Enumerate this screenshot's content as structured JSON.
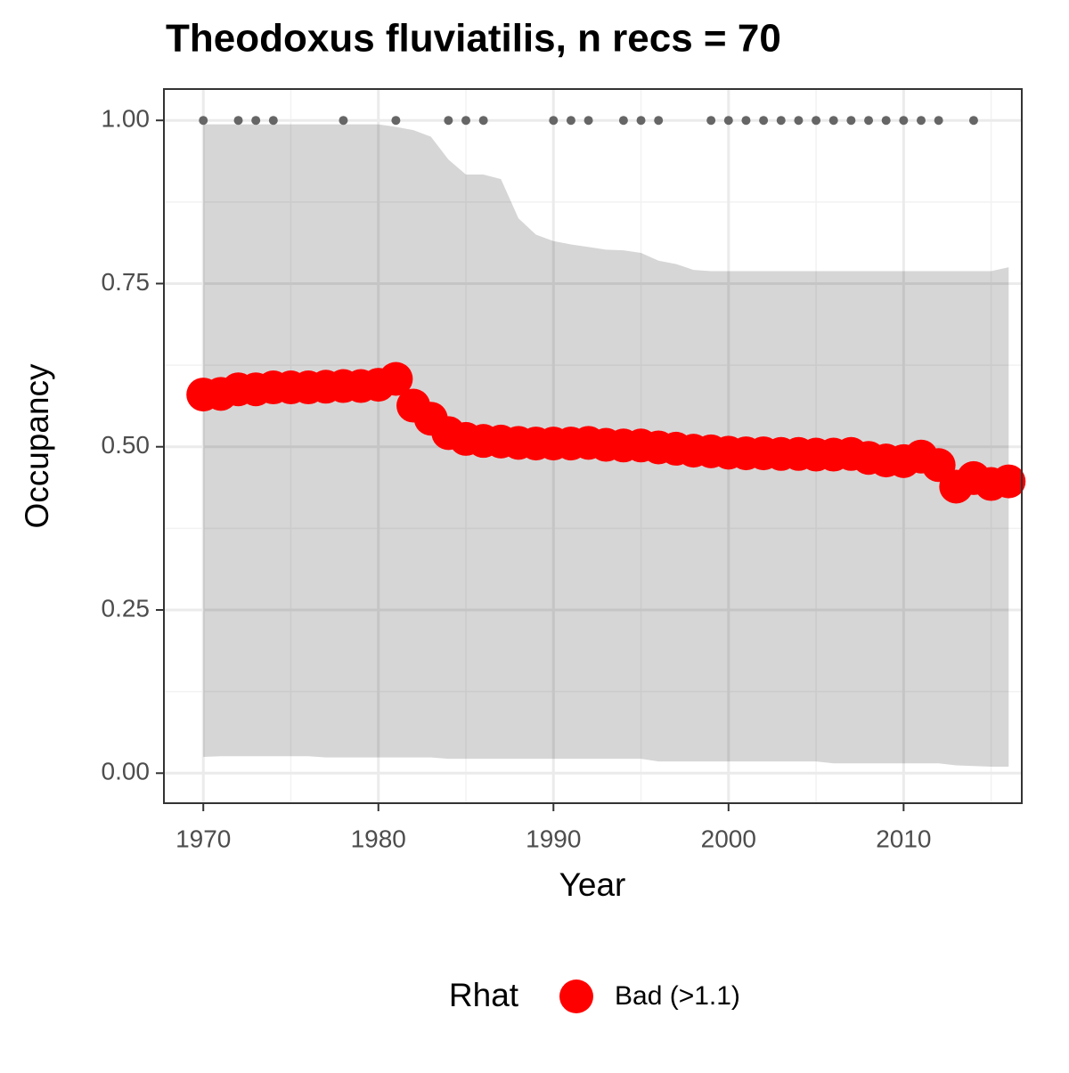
{
  "chart_data": {
    "type": "scatter",
    "title": "Theodoxus fluviatilis, n recs = 70",
    "x_label": "Year",
    "y_label": "Occupancy",
    "legend_title": "Rhat",
    "x": [
      1970,
      1971,
      1972,
      1973,
      1974,
      1975,
      1976,
      1977,
      1978,
      1979,
      1980,
      1981,
      1982,
      1983,
      1984,
      1985,
      1986,
      1987,
      1988,
      1989,
      1990,
      1991,
      1992,
      1993,
      1994,
      1995,
      1996,
      1997,
      1998,
      1999,
      2000,
      2001,
      2002,
      2003,
      2004,
      2005,
      2006,
      2007,
      2008,
      2009,
      2010,
      2011,
      2012,
      2013,
      2014,
      2015,
      2016
    ],
    "series": [
      {
        "name": "Bad (>1.1)",
        "color": "#ff0000",
        "values": [
          0.58,
          0.581,
          0.588,
          0.588,
          0.591,
          0.591,
          0.591,
          0.592,
          0.593,
          0.593,
          0.595,
          0.604,
          0.563,
          0.543,
          0.521,
          0.512,
          0.509,
          0.508,
          0.506,
          0.505,
          0.505,
          0.505,
          0.506,
          0.503,
          0.502,
          0.502,
          0.499,
          0.497,
          0.494,
          0.493,
          0.491,
          0.49,
          0.49,
          0.489,
          0.489,
          0.488,
          0.488,
          0.489,
          0.483,
          0.479,
          0.478,
          0.485,
          0.472,
          0.439,
          0.452,
          0.443,
          0.447
        ]
      }
    ],
    "ribbon": {
      "color": "#000000",
      "upper": [
        0.994,
        0.994,
        0.994,
        0.994,
        0.994,
        0.994,
        0.994,
        0.994,
        0.994,
        0.994,
        0.994,
        0.99,
        0.985,
        0.975,
        0.94,
        0.917,
        0.917,
        0.91,
        0.85,
        0.825,
        0.815,
        0.81,
        0.806,
        0.802,
        0.801,
        0.797,
        0.785,
        0.78,
        0.771,
        0.769,
        0.769,
        0.769,
        0.769,
        0.769,
        0.769,
        0.769,
        0.769,
        0.769,
        0.769,
        0.769,
        0.769,
        0.769,
        0.769,
        0.769,
        0.769,
        0.769,
        0.775
      ],
      "lower": [
        0.025,
        0.026,
        0.026,
        0.026,
        0.026,
        0.026,
        0.026,
        0.024,
        0.024,
        0.024,
        0.024,
        0.024,
        0.024,
        0.024,
        0.022,
        0.022,
        0.022,
        0.022,
        0.022,
        0.022,
        0.022,
        0.022,
        0.022,
        0.022,
        0.022,
        0.022,
        0.018,
        0.018,
        0.018,
        0.018,
        0.018,
        0.018,
        0.018,
        0.018,
        0.018,
        0.018,
        0.015,
        0.015,
        0.015,
        0.015,
        0.015,
        0.015,
        0.015,
        0.012,
        0.011,
        0.01,
        0.01
      ]
    },
    "detections": {
      "color": "#666666",
      "x": [
        1970,
        1972,
        1973,
        1974,
        1978,
        1981,
        1984,
        1985,
        1986,
        1990,
        1991,
        1992,
        1994,
        1995,
        1996,
        1999,
        2000,
        2001,
        2002,
        2003,
        2004,
        2005,
        2006,
        2007,
        2008,
        2009,
        2010,
        2011,
        2012,
        2014
      ],
      "values": [
        1,
        1,
        1,
        1,
        1,
        1,
        1,
        1,
        1,
        1,
        1,
        1,
        1,
        1,
        1,
        1,
        1,
        1,
        1,
        1,
        1,
        1,
        1,
        1,
        1,
        1,
        1,
        1,
        1,
        1
      ]
    },
    "xlim": [
      1967.75,
      2016.75
    ],
    "ylim": [
      -0.046,
      1.048
    ],
    "xticks": [
      1970,
      1980,
      1990,
      2000,
      2010
    ],
    "yticks": [
      {
        "value": 0,
        "label": "0.00"
      },
      0.25,
      {
        "value": 0.5,
        "label": "0.50"
      },
      0.75,
      {
        "value": 1,
        "label": "1.00"
      }
    ],
    "grid": true
  }
}
